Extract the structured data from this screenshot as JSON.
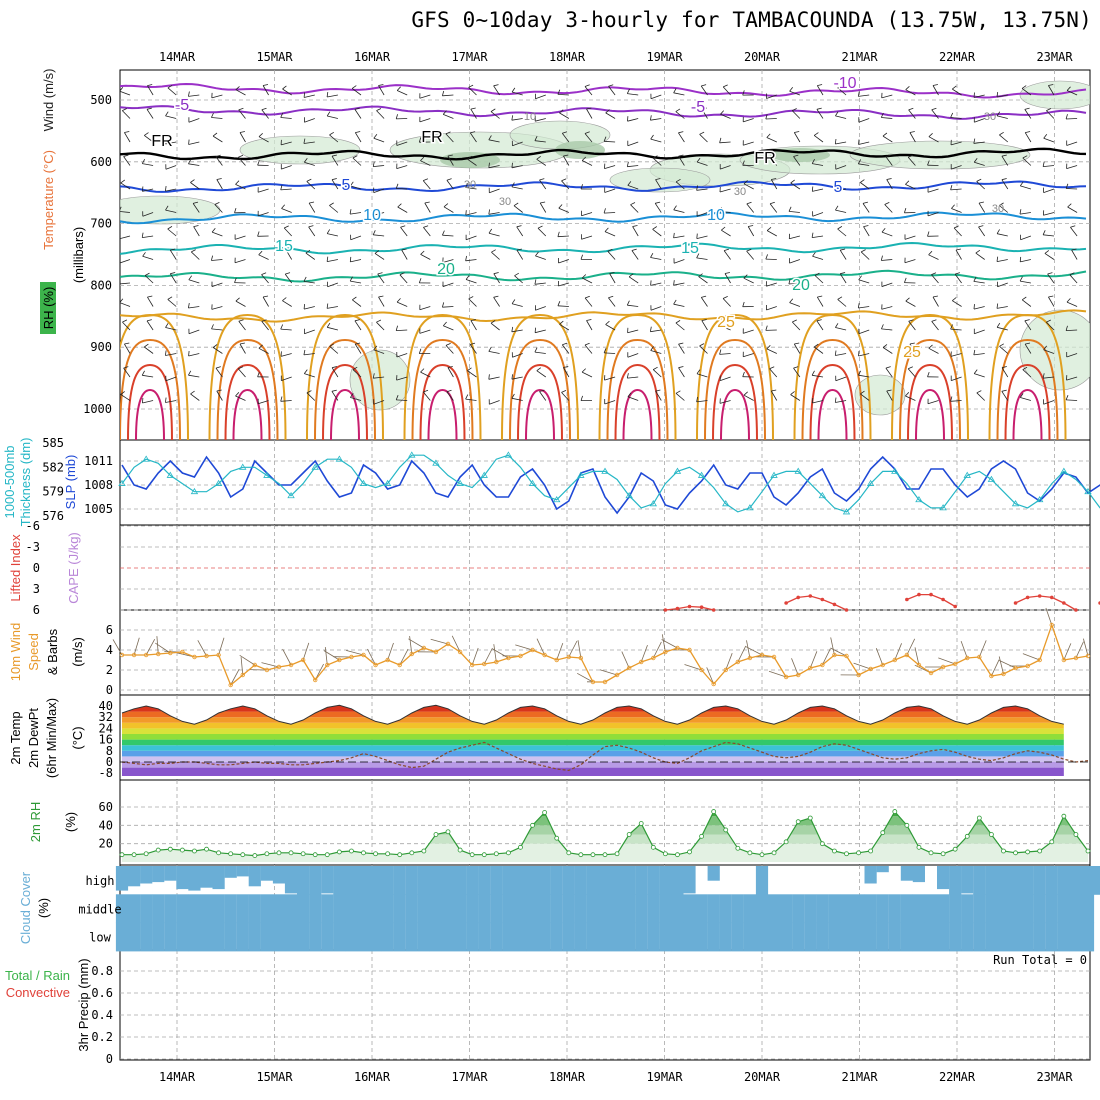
{
  "title": "GFS 0~10day 3-hourly for TAMBACOUNDA (13.75W, 13.75N)",
  "colors": {
    "grid": "#a8a8a8",
    "temperature": "#e8743b",
    "wind_label": "#222222",
    "rh": "#3cb44b",
    "slp": "#1f49d6",
    "thickness": "#26b7c6",
    "lifted_index": "#e0423a",
    "cape": "#b986d8",
    "wind10m": "#e89a2a",
    "rh2m": "#2e9a36",
    "cloud": "#6aaed6",
    "precip_total": "#3cb44b",
    "precip_convective": "#e0423a"
  },
  "chart_data": [
    {
      "panel": "upper-air",
      "type": "contour",
      "x_dates": [
        "14MAR",
        "15MAR",
        "16MAR",
        "17MAR",
        "18MAR",
        "19MAR",
        "20MAR",
        "21MAR",
        "22MAR",
        "23MAR"
      ],
      "ylabel_parts": [
        "RH (%)",
        "Temperature (°C)",
        "Wind (m/s)"
      ],
      "ylabel2": "(millibars)",
      "yticks": [
        500,
        600,
        700,
        800,
        900,
        1000
      ],
      "ylim": [
        450,
        1000
      ],
      "isotherms": [
        {
          "label": "-10",
          "p": 485,
          "color": "#9b30c8"
        },
        {
          "label": "-5",
          "p": 520,
          "color": "#8a2fc4"
        },
        {
          "label": "FR",
          "p": 588,
          "color": "#000000"
        },
        {
          "label": "5",
          "p": 640,
          "color": "#1f49d6"
        },
        {
          "label": "10",
          "p": 690,
          "color": "#1a8fd6"
        },
        {
          "label": "15",
          "p": 740,
          "color": "#1ab2b2"
        },
        {
          "label": "20",
          "p": 785,
          "color": "#1ab08a"
        },
        {
          "label": "25",
          "p": 850,
          "color": "#e0a020"
        }
      ],
      "contour_labels": [
        "-10",
        "-5",
        "-5",
        "FR",
        "FR",
        "FR",
        "5",
        "5",
        "10",
        "10",
        "15",
        "15",
        "20",
        "20",
        "25",
        "25",
        "10",
        "30",
        "30",
        "30",
        "30",
        "30"
      ]
    },
    {
      "panel": "slp-thickness",
      "type": "line",
      "ylabel_left": "1000-500mb Thickness (dm)",
      "ylabel_right": "SLP (mb)",
      "yticks_thickness": [
        576,
        579,
        582,
        585
      ],
      "yticks_slp": [
        1005,
        1008,
        1011
      ],
      "series": [
        {
          "name": "SLP",
          "values": [
            1010.5,
            1008,
            1007.5,
            1009.5,
            1011,
            1009.5,
            1009,
            1011.5,
            1009.5,
            1006.5,
            1007.5,
            1011,
            1009.5,
            1008,
            1008,
            1009.5,
            1011,
            1008.5,
            1006.5,
            1007,
            1010.5,
            1009.5,
            1007.5,
            1008,
            1011,
            1009.5,
            1007,
            1006.5,
            1009,
            1010.5,
            1008,
            1006.5,
            1006.5,
            1009,
            1010,
            1008,
            1005,
            1006,
            1009.5,
            1010,
            1006.5,
            1004.5,
            1006.5,
            1009.5,
            1008.5,
            1005.5,
            1005,
            1007,
            1008.5,
            1010.5,
            1008,
            1007.5,
            1009.5,
            1009.5,
            1006.5,
            1005.5,
            1007,
            1009,
            1010,
            1007,
            1006,
            1007.5,
            1010,
            1011.5,
            1010,
            1007.5,
            1007.5,
            1010,
            1010,
            1008,
            1006.5,
            1007.5,
            1010,
            1011,
            1010,
            1007,
            1006,
            1007.5,
            1009.5,
            1009,
            1007,
            1008,
            1009
          ]
        },
        {
          "name": "Thickness",
          "values": [
            580,
            582,
            583,
            582.5,
            581,
            580,
            579,
            579,
            580,
            581.5,
            582,
            582,
            581,
            580,
            578.5,
            580,
            582,
            583,
            583,
            582,
            580,
            579.5,
            580,
            582,
            583.5,
            583.5,
            582.5,
            581,
            580,
            579.5,
            581,
            583,
            583.5,
            582,
            580,
            578.5,
            578,
            579.5,
            581,
            581.5,
            581.5,
            580.5,
            578.5,
            577,
            577.5,
            580,
            581.5,
            582,
            581,
            579.5,
            577.5,
            576.5,
            577,
            579,
            581,
            581.5,
            581.5,
            580,
            578.5,
            577,
            576.5,
            578,
            580,
            581.5,
            581.5,
            580,
            578,
            577,
            577,
            579,
            581,
            581.5,
            580.5,
            579,
            577.5,
            577,
            578,
            580,
            581.5,
            580.5,
            579,
            577,
            576
          ]
        }
      ]
    },
    {
      "panel": "stability",
      "type": "line",
      "ylabel_left": "Lifted Index",
      "ylabel_right": "CAPE (J/kg)",
      "yticks": [
        "-6",
        "-3",
        "0",
        "3",
        "6"
      ],
      "series": [
        {
          "name": "Lifted Index",
          "values": [
            null,
            null,
            null,
            null,
            null,
            null,
            null,
            null,
            null,
            null,
            null,
            null,
            null,
            null,
            null,
            null,
            null,
            null,
            null,
            null,
            null,
            null,
            null,
            null,
            null,
            null,
            null,
            null,
            null,
            null,
            null,
            null,
            null,
            null,
            null,
            null,
            null,
            null,
            null,
            null,
            null,
            null,
            null,
            null,
            null,
            6,
            5.8,
            5.5,
            5.6,
            6,
            null,
            null,
            null,
            null,
            null,
            5,
            4.2,
            4,
            4.5,
            5.2,
            6,
            null,
            null,
            null,
            null,
            4.5,
            3.8,
            3.8,
            4.5,
            5.5,
            null,
            null,
            null,
            null,
            5,
            4.2,
            4,
            4.2,
            5,
            6,
            null,
            5,
            4.5
          ]
        }
      ]
    },
    {
      "panel": "wind10m",
      "type": "line",
      "ylabel_left": "10m Wind",
      "ylabel_mid": "Speed",
      "ylabel_right": "& Barbs",
      "ylabel_unit": "(m/s)",
      "yticks": [
        0,
        2,
        4,
        6
      ],
      "series": [
        {
          "name": "Speed",
          "values": [
            3.5,
            3.5,
            3.5,
            3.6,
            3.7,
            3.8,
            3.3,
            3.4,
            3.5,
            0.5,
            1.5,
            2.5,
            2,
            2.3,
            2.5,
            3,
            1,
            2.5,
            3,
            3.3,
            3.5,
            2.5,
            3,
            2.5,
            3.6,
            4.2,
            3.8,
            4.6,
            3.8,
            2.5,
            2.6,
            2.8,
            3.2,
            3.4,
            4,
            3.5,
            3,
            3.3,
            3.2,
            0.8,
            0.8,
            1.5,
            2.2,
            2.8,
            3.2,
            3.8,
            4.2,
            4,
            2,
            0.6,
            2,
            2.8,
            3.2,
            3.5,
            3.3,
            1.3,
            1.5,
            2.2,
            2.5,
            3.5,
            3.4,
            1.5,
            2.1,
            2.5,
            3,
            3.5,
            2.5,
            1.7,
            2.3,
            2.6,
            3.2,
            3.3,
            1.4,
            1.6,
            2.2,
            2.4,
            3,
            6.5,
            3,
            3.2,
            3.4
          ]
        }
      ]
    },
    {
      "panel": "temp2m",
      "type": "area",
      "ylabel_parts": [
        "2m Temp",
        "2m DewPt",
        "(6hr Min/Max)"
      ],
      "ylabel_unit": "(°C)",
      "yticks": [
        "40",
        "32",
        "24",
        "16",
        "8",
        "0",
        "-8"
      ],
      "series": [
        {
          "name": "2m Temp",
          "values": [
            35,
            38,
            40,
            38,
            33,
            29,
            27,
            30,
            35,
            38,
            40,
            38,
            33,
            29,
            27,
            30,
            35,
            39,
            40.5,
            38,
            33,
            29,
            27,
            30,
            35,
            39,
            40.5,
            38,
            33,
            29,
            27,
            30,
            35,
            39,
            40,
            38,
            33,
            29,
            27,
            30,
            35,
            39,
            40,
            38,
            33,
            29,
            27,
            30,
            35,
            39,
            40,
            38,
            33,
            29,
            27,
            30,
            35,
            39,
            40,
            38,
            33,
            29,
            27,
            30,
            35,
            39,
            40,
            38,
            33,
            29,
            27,
            30,
            35,
            39,
            40,
            38,
            33,
            29,
            27
          ]
        },
        {
          "name": "2m DewPt",
          "values": [
            0,
            -1,
            -2,
            -1,
            -1,
            0,
            0,
            -1,
            -2,
            -2,
            -1,
            0,
            -1,
            -1,
            -2,
            -2,
            -1,
            0,
            1,
            3,
            6,
            4,
            1,
            -2,
            -4,
            -3,
            2,
            7,
            10,
            12,
            14,
            10,
            6,
            2,
            -1,
            -3,
            -5,
            -6,
            -2,
            5,
            11,
            12,
            10,
            7,
            3,
            0,
            -1,
            3,
            8,
            11,
            14,
            13,
            10,
            7,
            4,
            3,
            4,
            7,
            11,
            13,
            12,
            9,
            6,
            3,
            2,
            3,
            6,
            8,
            9,
            7,
            4,
            2,
            1,
            3,
            6,
            8,
            7,
            5,
            2,
            0,
            1
          ]
        }
      ]
    },
    {
      "panel": "rh2m",
      "type": "area",
      "ylabel_left": "2m RH",
      "ylabel_unit": "(%)",
      "yticks": [
        20,
        40,
        60
      ],
      "series": [
        {
          "name": "2m RH",
          "values": [
            8,
            8,
            9,
            13,
            14,
            13,
            12,
            14,
            10,
            9,
            8,
            7,
            9,
            10,
            10,
            9,
            8,
            8,
            11,
            12,
            10,
            9,
            9,
            8,
            10,
            12,
            30,
            33,
            13,
            8,
            8,
            9,
            10,
            16,
            40,
            54,
            26,
            10,
            8,
            8,
            8,
            9,
            30,
            42,
            16,
            9,
            8,
            11,
            28,
            55,
            35,
            15,
            10,
            8,
            10,
            22,
            44,
            48,
            20,
            12,
            9,
            10,
            12,
            32,
            55,
            40,
            16,
            10,
            9,
            14,
            28,
            48,
            30,
            12,
            10,
            11,
            12,
            22,
            50,
            30,
            12
          ]
        }
      ]
    },
    {
      "panel": "cloud",
      "type": "area",
      "ylabel_left": "Cloud Cover",
      "ylabel_unit": "(%)",
      "row_labels": [
        "high",
        "middle",
        "low"
      ],
      "series": [
        {
          "name": "high",
          "values": [
            85,
            70,
            60,
            55,
            50,
            80,
            85,
            75,
            80,
            40,
            35,
            70,
            50,
            60,
            95,
            100,
            100,
            95,
            100,
            100,
            100,
            100,
            100,
            100,
            100,
            100,
            100,
            100,
            100,
            100,
            100,
            100,
            100,
            100,
            100,
            100,
            100,
            100,
            100,
            100,
            100,
            100,
            100,
            100,
            100,
            100,
            100,
            95,
            0,
            50,
            0,
            0,
            0,
            100,
            0,
            0,
            0,
            0,
            0,
            0,
            0,
            0,
            60,
            20,
            0,
            50,
            55,
            0,
            80,
            100,
            95,
            100,
            100,
            100,
            100,
            100,
            100,
            100,
            100,
            100,
            100,
            100
          ]
        },
        {
          "name": "middle",
          "values": [
            100,
            100,
            100,
            100,
            100,
            100,
            100,
            100,
            100,
            100,
            100,
            100,
            100,
            100,
            100,
            100,
            100,
            100,
            100,
            100,
            100,
            100,
            100,
            100,
            100,
            100,
            100,
            100,
            100,
            100,
            100,
            100,
            100,
            100,
            100,
            100,
            100,
            100,
            100,
            100,
            100,
            100,
            100,
            100,
            100,
            100,
            100,
            100,
            100,
            100,
            100,
            100,
            100,
            100,
            100,
            100,
            100,
            100,
            100,
            100,
            100,
            100,
            100,
            100,
            100,
            100,
            100,
            100,
            100,
            100,
            100,
            100,
            100,
            100,
            100,
            100,
            100,
            100,
            100,
            100,
            100
          ]
        },
        {
          "name": "low",
          "values": [
            100,
            100,
            100,
            100,
            100,
            100,
            100,
            100,
            100,
            100,
            100,
            100,
            100,
            100,
            100,
            100,
            100,
            100,
            100,
            100,
            100,
            100,
            100,
            100,
            100,
            100,
            100,
            100,
            100,
            100,
            100,
            100,
            100,
            100,
            100,
            100,
            100,
            100,
            100,
            100,
            100,
            100,
            100,
            100,
            100,
            100,
            100,
            100,
            100,
            100,
            100,
            100,
            100,
            100,
            100,
            100,
            100,
            100,
            100,
            100,
            100,
            100,
            100,
            100,
            100,
            100,
            100,
            100,
            100,
            100,
            100,
            100,
            100,
            100,
            100,
            100,
            100,
            100,
            100,
            100,
            100
          ]
        }
      ]
    },
    {
      "panel": "precip",
      "type": "bar",
      "ylabel_left": "Total / Rain",
      "ylabel_left2": "Convective",
      "ylabel_right": "3hr Precip (mm)",
      "yticks": [
        "0",
        "0.2",
        "0.4",
        "0.6",
        "0.8"
      ],
      "ylim": [
        0,
        0.9
      ],
      "annotation": "Run Total = 0",
      "values": []
    }
  ]
}
